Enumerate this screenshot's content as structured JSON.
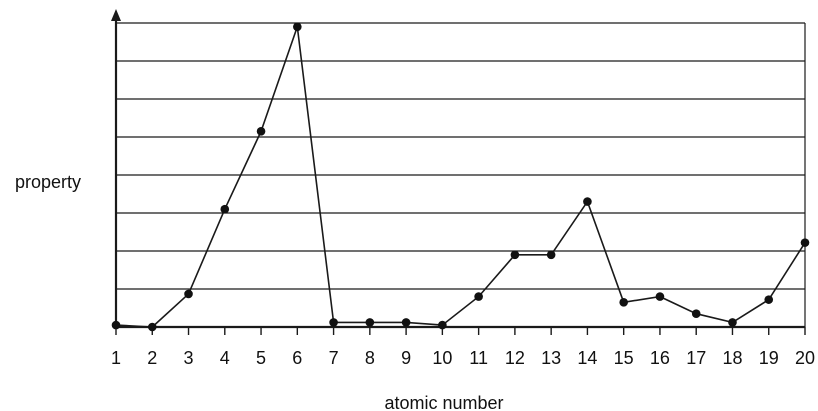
{
  "chart_data": {
    "type": "line",
    "title": "",
    "xlabel": "atomic number",
    "ylabel": "property",
    "x": [
      1,
      2,
      3,
      4,
      5,
      6,
      7,
      8,
      9,
      10,
      11,
      12,
      13,
      14,
      15,
      16,
      17,
      18,
      19,
      20
    ],
    "series": [
      {
        "values": [
          0.05,
          0.0,
          0.87,
          3.1,
          5.15,
          7.9,
          0.12,
          0.12,
          0.12,
          0.05,
          0.8,
          1.9,
          1.9,
          3.3,
          0.65,
          0.8,
          0.35,
          0.12,
          0.72,
          2.22
        ]
      }
    ],
    "xlim": [
      1,
      20
    ],
    "ylim": [
      0,
      8
    ],
    "y_ticks_shown": false,
    "grid": "horizontal",
    "legend": "none",
    "colors": {
      "line": "#1a1a1a",
      "grid": "#1a1a1a",
      "marker": "#111111"
    }
  }
}
